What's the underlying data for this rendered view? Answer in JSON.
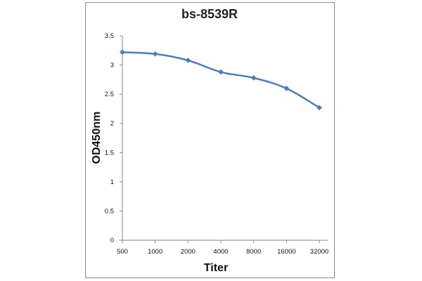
{
  "chart_data": {
    "type": "line",
    "title": "bs-8539R",
    "xlabel": "Titer",
    "ylabel": "OD450nm",
    "categories": [
      "500",
      "1000",
      "2000",
      "4000",
      "8000",
      "16000",
      "32000"
    ],
    "series": [
      {
        "name": "bs-8539R",
        "values": [
          3.22,
          3.19,
          3.08,
          2.88,
          2.78,
          2.6,
          2.27
        ],
        "color": "#4a7ebb"
      }
    ],
    "ylim": [
      0,
      3.5
    ],
    "yticks": [
      "0",
      "0.5",
      "1",
      "1.5",
      "2",
      "2.5",
      "3",
      "3.5"
    ],
    "grid": false,
    "legend": "none"
  }
}
